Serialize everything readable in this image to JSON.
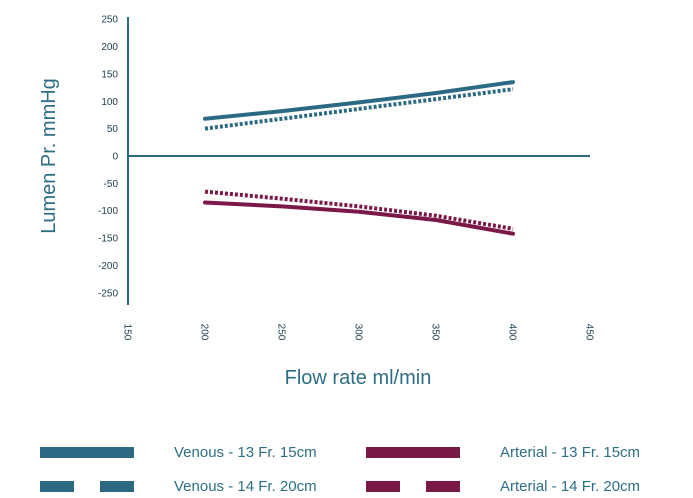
{
  "chart_data": {
    "type": "line",
    "xlabel": "Flow rate ml/min",
    "ylabel": "Lumen Pr. mmHg",
    "xlim": [
      150,
      450
    ],
    "ylim": [
      -275,
      250
    ],
    "x_ticks": [
      150,
      200,
      250,
      300,
      350,
      400,
      450
    ],
    "y_ticks": [
      250,
      200,
      150,
      100,
      50,
      0,
      -50,
      -100,
      -150,
      -200,
      -250
    ],
    "grid": false,
    "legend_position": "bottom",
    "series": [
      {
        "name": "Venous - 13 Fr. 15cm",
        "style": "solid",
        "color": "#2c6a83",
        "x": [
          200,
          250,
          300,
          350,
          400
        ],
        "y": [
          68,
          82,
          98,
          115,
          135
        ]
      },
      {
        "name": "Venous - 14 Fr. 20cm",
        "style": "dashed",
        "color": "#2c6a83",
        "x": [
          200,
          250,
          300,
          350,
          400
        ],
        "y": [
          50,
          68,
          86,
          104,
          122
        ]
      },
      {
        "name": "Arterial - 13 Fr. 15cm",
        "style": "solid",
        "color": "#7a1848",
        "x": [
          200,
          250,
          300,
          350,
          400
        ],
        "y": [
          -85,
          -92,
          -102,
          -117,
          -142
        ]
      },
      {
        "name": "Arterial - 14 Fr. 20cm",
        "style": "dashed",
        "color": "#7a1848",
        "x": [
          200,
          250,
          300,
          350,
          400
        ],
        "y": [
          -65,
          -78,
          -92,
          -109,
          -133
        ]
      }
    ]
  }
}
